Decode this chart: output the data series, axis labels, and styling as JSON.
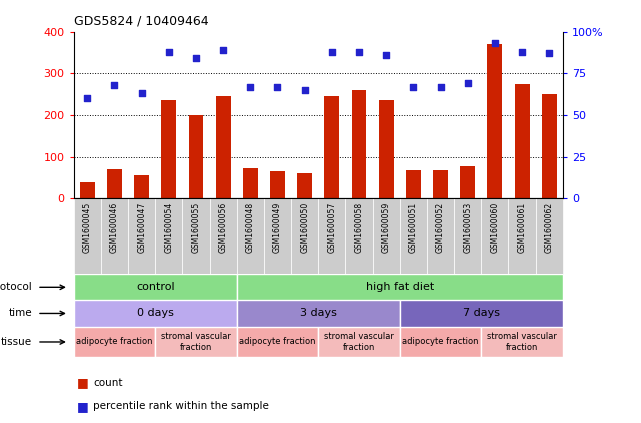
{
  "title": "GDS5824 / 10409464",
  "samples": [
    "GSM1600045",
    "GSM1600046",
    "GSM1600047",
    "GSM1600054",
    "GSM1600055",
    "GSM1600056",
    "GSM1600048",
    "GSM1600049",
    "GSM1600050",
    "GSM1600057",
    "GSM1600058",
    "GSM1600059",
    "GSM1600051",
    "GSM1600052",
    "GSM1600053",
    "GSM1600060",
    "GSM1600061",
    "GSM1600062"
  ],
  "counts": [
    40,
    70,
    55,
    235,
    200,
    245,
    72,
    65,
    60,
    245,
    260,
    237,
    68,
    67,
    77,
    370,
    275,
    250
  ],
  "percentiles": [
    60,
    68,
    63,
    88,
    84,
    89,
    67,
    67,
    65,
    88,
    88,
    86,
    67,
    67,
    69,
    93,
    88,
    87
  ],
  "bar_color": "#CC2200",
  "dot_color": "#2222CC",
  "ylim_left": [
    0,
    400
  ],
  "ylim_right": [
    0,
    100
  ],
  "yticks_left": [
    0,
    100,
    200,
    300,
    400
  ],
  "yticks_right": [
    0,
    25,
    50,
    75,
    100
  ],
  "ytick_labels_right": [
    "0",
    "25",
    "50",
    "75",
    "100%"
  ],
  "grid_lines": [
    100,
    200,
    300
  ],
  "protocol_boxes": [
    {
      "label": "control",
      "start": 0,
      "end": 6,
      "color": "#88DD88"
    },
    {
      "label": "high fat diet",
      "start": 6,
      "end": 18,
      "color": "#88DD88"
    }
  ],
  "time_groups": [
    {
      "label": "0 days",
      "start": 0,
      "end": 6,
      "color": "#BBAAEE"
    },
    {
      "label": "3 days",
      "start": 6,
      "end": 12,
      "color": "#9988CC"
    },
    {
      "label": "7 days",
      "start": 12,
      "end": 18,
      "color": "#7766BB"
    }
  ],
  "tissue_groups": [
    {
      "label": "adipocyte fraction",
      "start": 0,
      "end": 3,
      "color": "#F4AAAA"
    },
    {
      "label": "stromal vascular\nfraction",
      "start": 3,
      "end": 6,
      "color": "#F4BBBB"
    },
    {
      "label": "adipocyte fraction",
      "start": 6,
      "end": 9,
      "color": "#F4AAAA"
    },
    {
      "label": "stromal vascular\nfraction",
      "start": 9,
      "end": 12,
      "color": "#F4BBBB"
    },
    {
      "label": "adipocyte fraction",
      "start": 12,
      "end": 15,
      "color": "#F4AAAA"
    },
    {
      "label": "stromal vascular\nfraction",
      "start": 15,
      "end": 18,
      "color": "#F4BBBB"
    }
  ],
  "label_bg_color": "#CCCCCC",
  "legend_count_label": "count",
  "legend_pct_label": "percentile rank within the sample"
}
